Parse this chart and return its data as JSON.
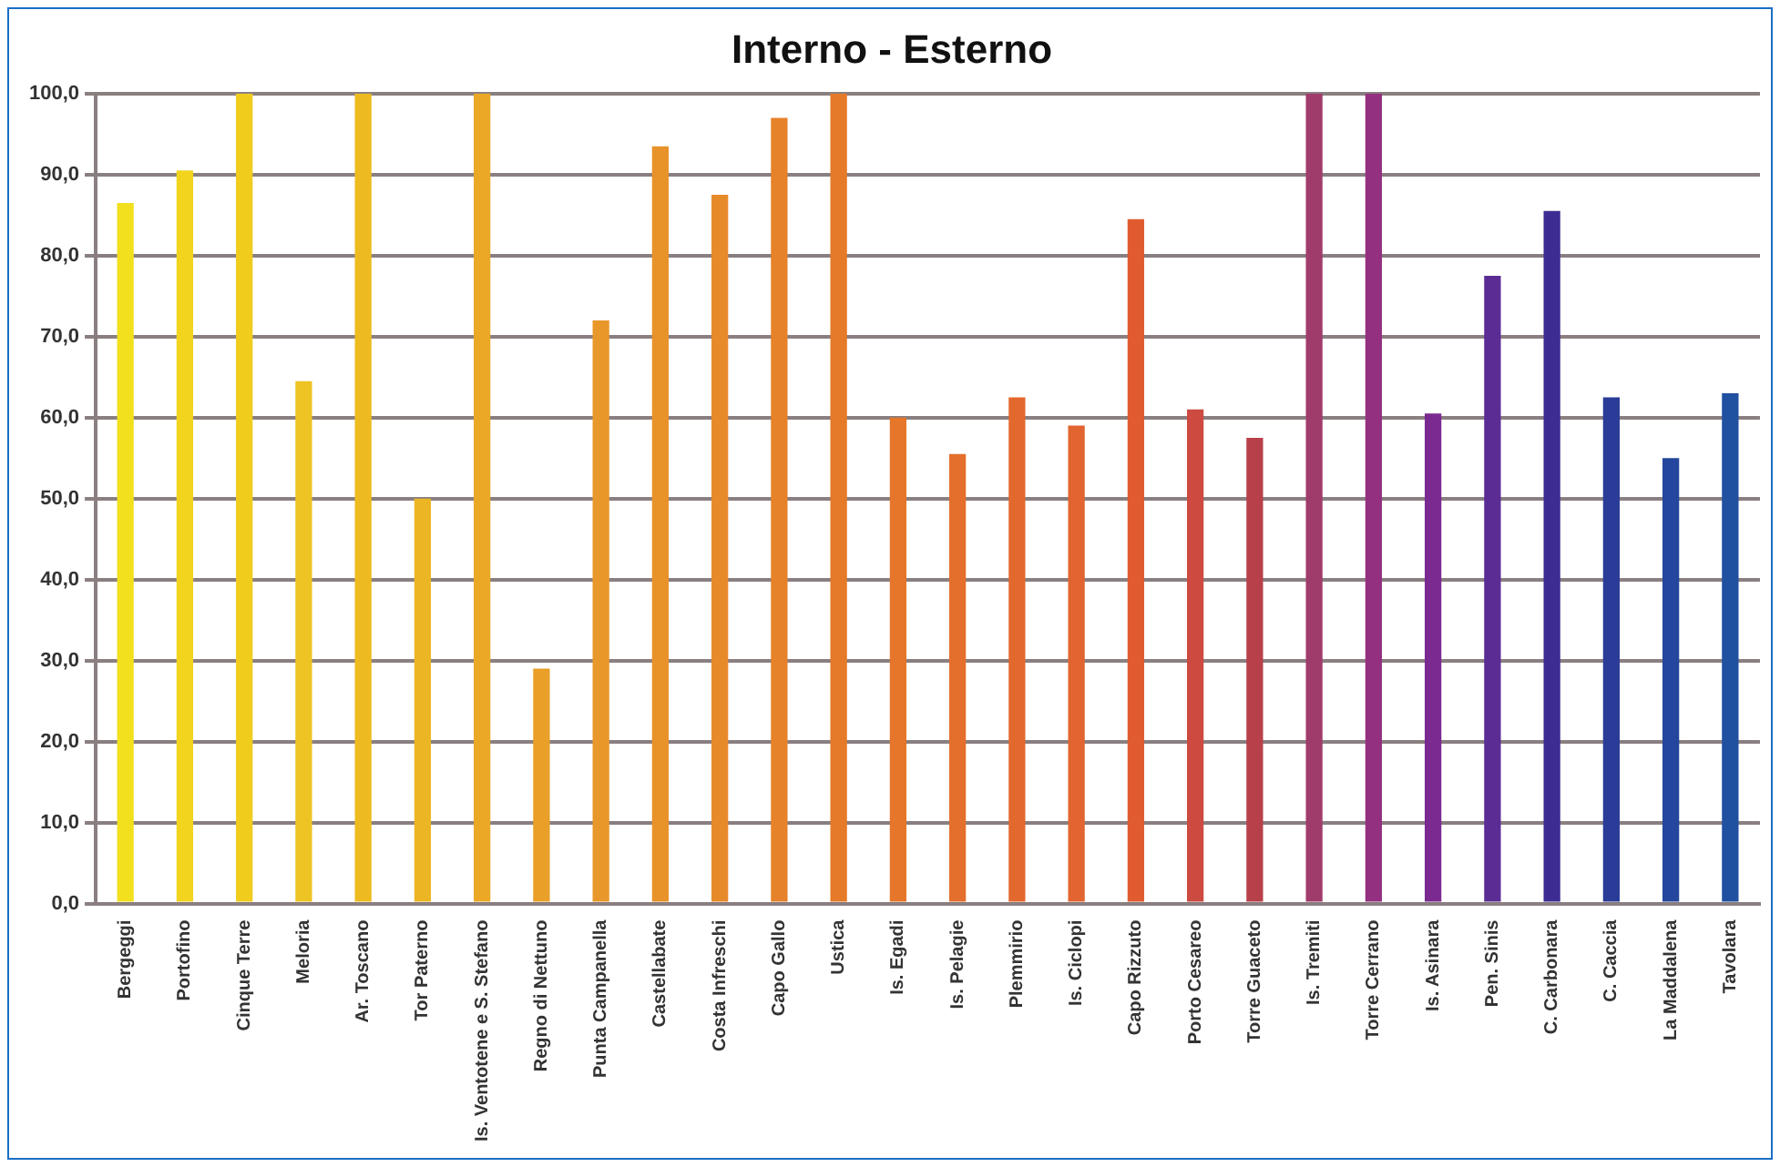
{
  "chart_data": {
    "type": "bar",
    "title": "Interno - Esterno",
    "categories": [
      "Bergeggi",
      "Portofino",
      "Cinque Terre",
      "Meloria",
      "Ar. Toscano",
      "Tor Paterno",
      "Is. Ventotene e S. Stefano",
      "Regno di Nettuno",
      "Punta Campanella",
      "Castellabate",
      "Costa Infreschi",
      "Capo Gallo",
      "Ustica",
      "Is. Egadi",
      "Is. Pelagie",
      "Plemmirio",
      "Is. Ciclopi",
      "Capo Rizzuto",
      "Porto Cesareo",
      "Torre Guaceto",
      "Is. Tremiti",
      "Torre Cerrano",
      "Is. Asinara",
      "Pen. Sinis",
      "C. Carbonara",
      "C. Caccia",
      "La Maddalena",
      "Tavolara"
    ],
    "values": [
      86.5,
      90.5,
      100,
      64.5,
      100,
      50,
      100,
      29,
      72,
      93.5,
      87.5,
      97,
      100,
      60,
      55.5,
      62.5,
      59,
      84.5,
      61,
      57.5,
      100,
      100,
      60.5,
      77.5,
      85.5,
      62.5,
      55,
      63
    ],
    "colors": [
      "#f2e01e",
      "#f2d41e",
      "#f0cc1c",
      "#eec324",
      "#edbb20",
      "#ecb524",
      "#eaa825",
      "#e99f28",
      "#e8982a",
      "#e8922a",
      "#e78a2a",
      "#e6822a",
      "#e57a28",
      "#e5762a",
      "#e46e2c",
      "#e3682e",
      "#e26430",
      "#e05c30",
      "#cc4a40",
      "#b8404a",
      "#a03c6c",
      "#943080",
      "#7a2a90",
      "#5a2c94",
      "#3c2c94",
      "#2a3c98",
      "#24469c",
      "#2050a0"
    ],
    "ylim": [
      0,
      100
    ],
    "yticks": [
      {
        "value": 0,
        "label": "0,0"
      },
      {
        "value": 10,
        "label": "10,0"
      },
      {
        "value": 20,
        "label": "20,0"
      },
      {
        "value": 30,
        "label": "30,0"
      },
      {
        "value": 40,
        "label": "40,0"
      },
      {
        "value": 50,
        "label": "50,0"
      },
      {
        "value": 60,
        "label": "60,0"
      },
      {
        "value": 70,
        "label": "70,0"
      },
      {
        "value": 80,
        "label": "80,0"
      },
      {
        "value": 90,
        "label": "90,0"
      },
      {
        "value": 100,
        "label": "100,0"
      }
    ],
    "grid": "y",
    "legend": false
  }
}
